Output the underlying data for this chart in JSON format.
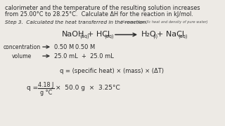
{
  "bg_color": "#edeae5",
  "top_text_line1": "calorimeter and the temperature of the resulting solution increases",
  "top_text_line2": "from 25.00°C to 28.25°C.  Calculate ΔH for the reaction in kJ/mol.",
  "step3_main": "Step 3.  Calculated the heat transferred in the reaction.",
  "step3_small": "(Assume specific heat and density of pure water)",
  "conc_label": "concentration",
  "vol_label": "volume",
  "conc_val1": "0.50 M",
  "conc_val2": "0.50 M",
  "vol_val": "25.0 mL  +  25.0 mL",
  "q_formula": "q = (specific heat) × (mass) × (ΔT)",
  "q_numerator": "4.18 J",
  "q_denominator": "g °C",
  "q_rest": "×  50.0 g  ×  3.25°C",
  "text_color": "#2a2a2a",
  "frac_color": "#2a2a2a"
}
